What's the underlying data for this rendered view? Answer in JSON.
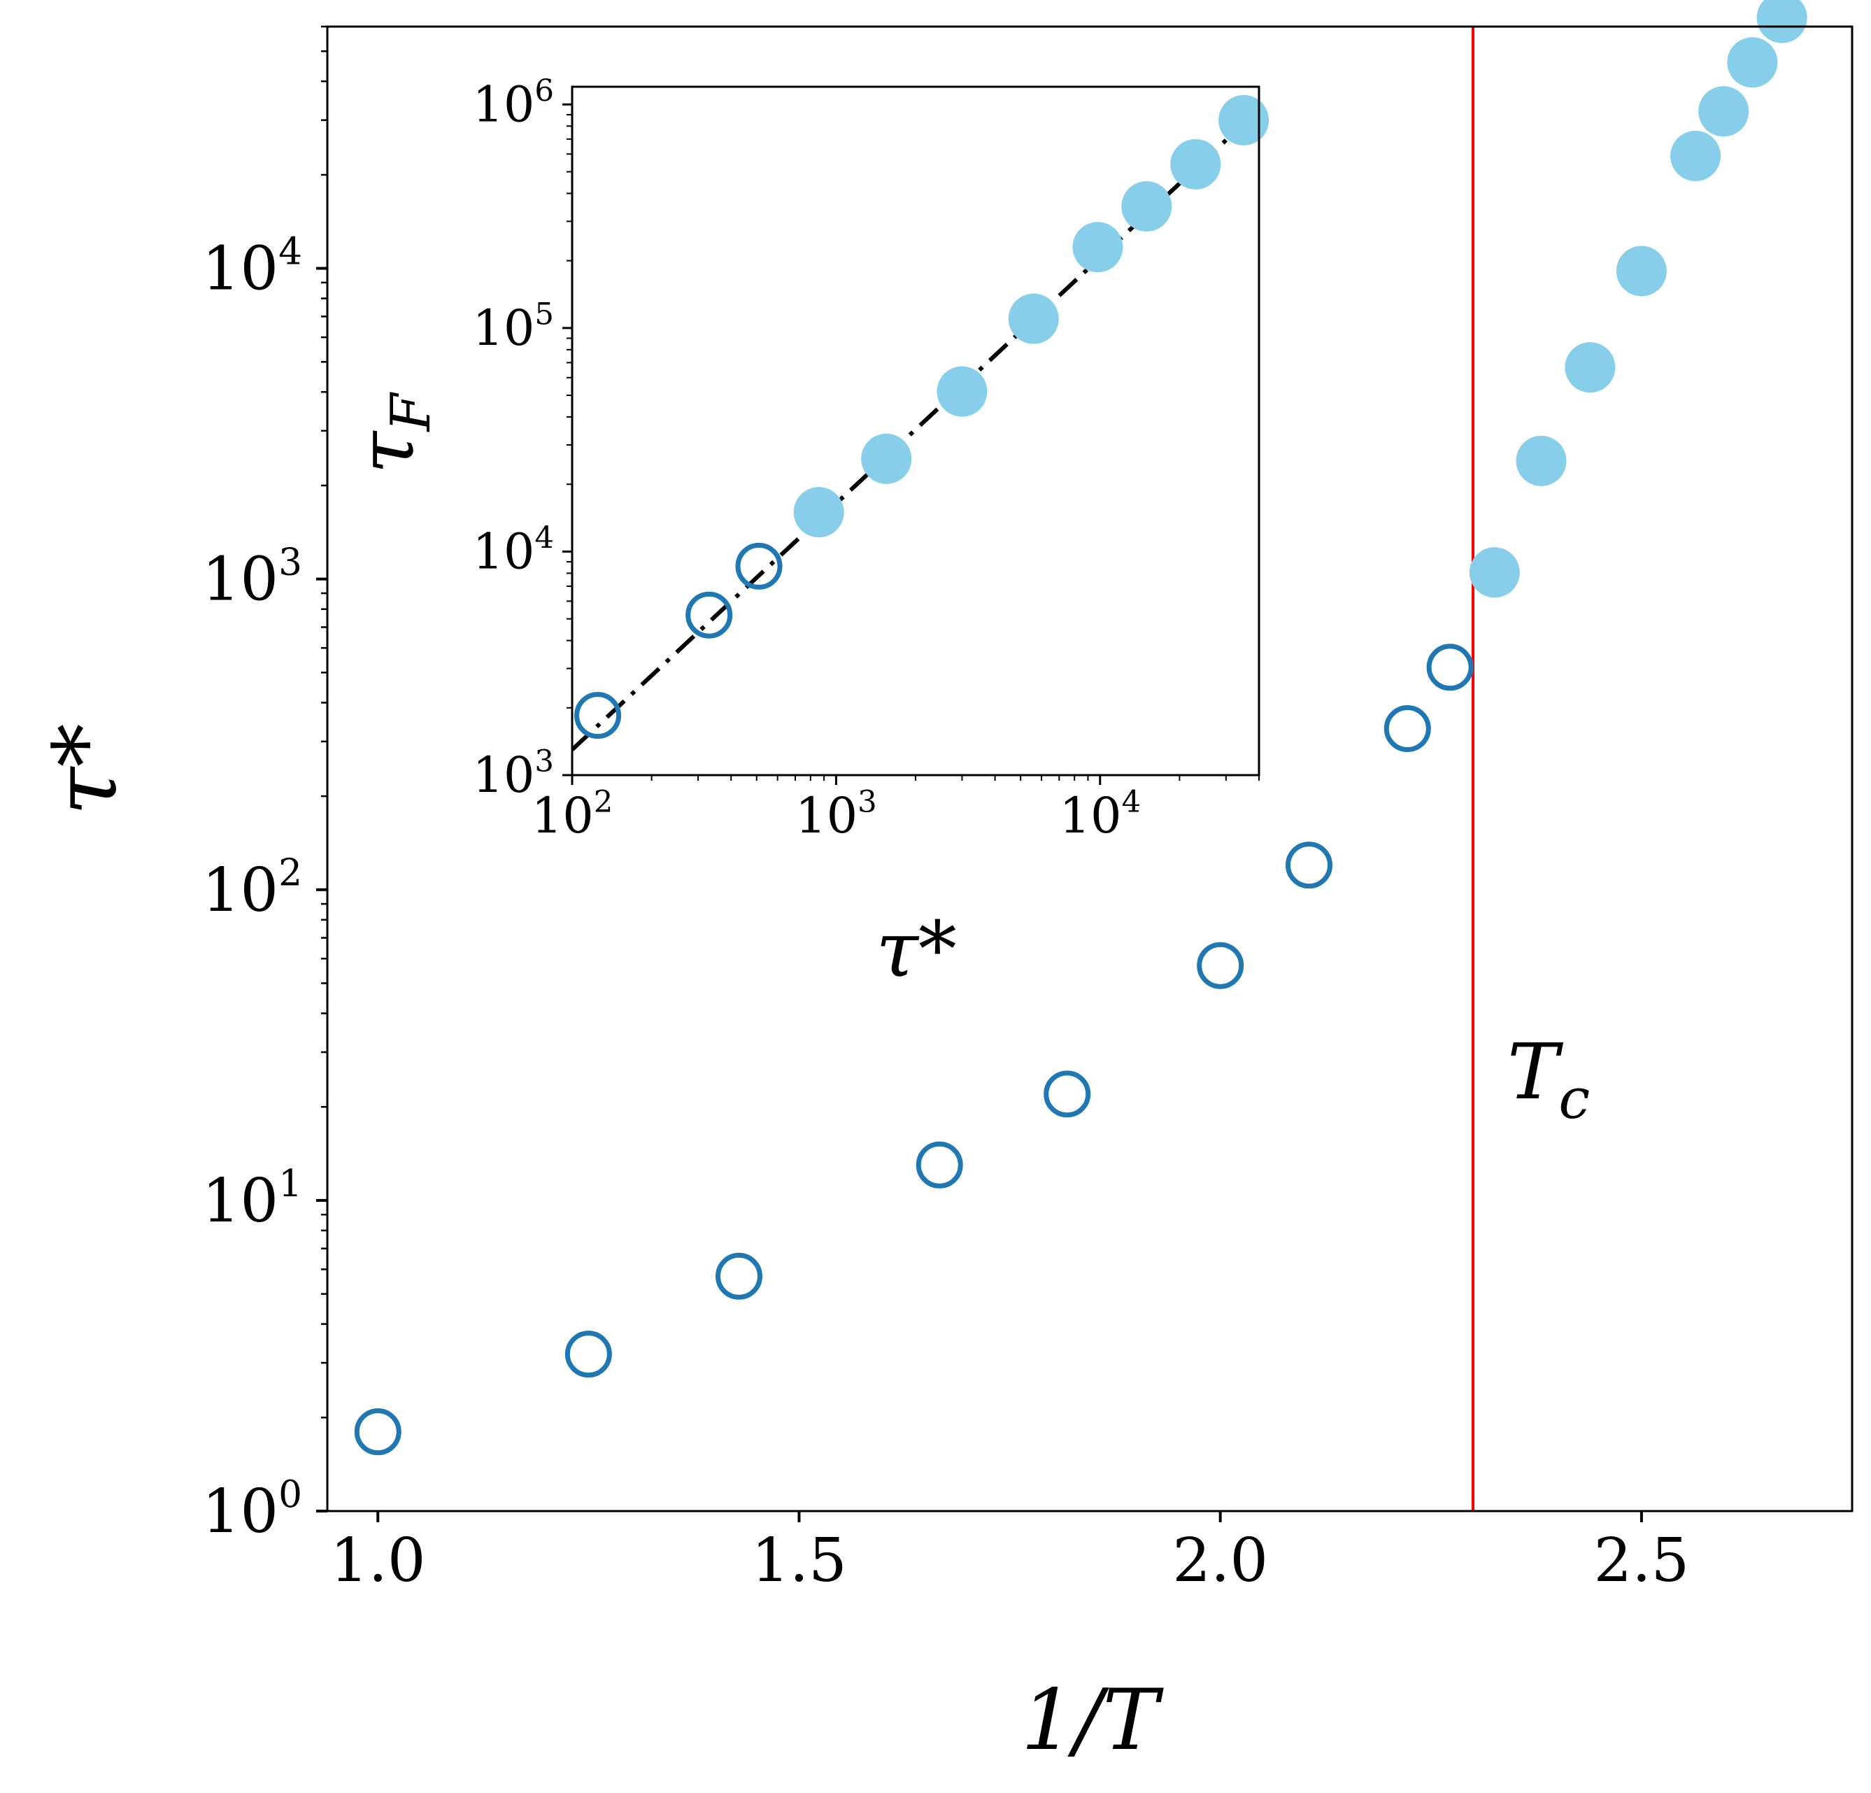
{
  "chart_data": [
    {
      "type": "scatter",
      "title": "",
      "xlabel": "1/T",
      "ylabel": "τ*",
      "yscale": "log",
      "xlim": [
        0.94,
        2.75
      ],
      "ylim": [
        1,
        60000
      ],
      "xticks": [
        1.0,
        1.5,
        2.0,
        2.5
      ],
      "xtick_labels": [
        "1.0",
        "1.5",
        "2.0",
        "2.5"
      ],
      "yticks": [
        1,
        10,
        100,
        1000,
        10000
      ],
      "ytick_labels": [
        {
          "base": "10",
          "exp": "0"
        },
        {
          "base": "10",
          "exp": "1"
        },
        {
          "base": "10",
          "exp": "2"
        },
        {
          "base": "10",
          "exp": "3"
        },
        {
          "base": "10",
          "exp": "4"
        }
      ],
      "grid": false,
      "series": [
        {
          "marker": "open-circle",
          "color": "#1f77b4",
          "x": [
            1.0,
            1.25,
            1.4286,
            1.6667,
            1.8182,
            2.0,
            2.1053,
            2.2222,
            2.2727
          ],
          "y": [
            1.8,
            3.2,
            5.7,
            13.0,
            22.0,
            57.0,
            120.0,
            330.0,
            520.0
          ]
        },
        {
          "marker": "filled-circle",
          "color": "#87ceeb",
          "x": [
            2.3256,
            2.381,
            2.439,
            2.5,
            2.5641,
            2.5974,
            2.6316,
            2.6667
          ],
          "y": [
            1050,
            2400,
            4800,
            9800,
            23000,
            32000,
            46000,
            64000
          ]
        }
      ],
      "vline": {
        "x": 2.3,
        "color": "#ff0000"
      },
      "annotation": {
        "base": "T",
        "sub": "c"
      }
    },
    {
      "type": "scatter",
      "title": "",
      "xlabel": "τ*",
      "ylabel": "τ_F",
      "xscale": "log",
      "yscale": "log",
      "xlim": [
        100,
        40000
      ],
      "ylim": [
        1000,
        1200000
      ],
      "xticks": [
        100,
        1000,
        10000
      ],
      "xtick_labels": [
        {
          "base": "10",
          "exp": "2"
        },
        {
          "base": "10",
          "exp": "3"
        },
        {
          "base": "10",
          "exp": "4"
        }
      ],
      "yticks": [
        1000,
        10000,
        100000,
        1000000
      ],
      "ytick_labels": [
        {
          "base": "10",
          "exp": "3"
        },
        {
          "base": "10",
          "exp": "4"
        },
        {
          "base": "10",
          "exp": "5"
        },
        {
          "base": "10",
          "exp": "6"
        }
      ],
      "grid": false,
      "series": [
        {
          "marker": "open-circle",
          "color": "#1f77b4",
          "x": [
            125,
            330,
            510
          ],
          "y": [
            1850,
            5200,
            8600
          ]
        },
        {
          "marker": "filled-circle",
          "color": "#87ceeb",
          "x": [
            860,
            1550,
            3000,
            5600,
            9800,
            15000,
            23000,
            35000
          ],
          "y": [
            15000,
            26000,
            52000,
            110000,
            230000,
            350000,
            540000,
            850000
          ]
        }
      ],
      "fit_line": {
        "style": "dash-dot",
        "color": "#000000",
        "x": [
          100,
          40000
        ],
        "y": [
          1300,
          950000
        ]
      }
    }
  ]
}
